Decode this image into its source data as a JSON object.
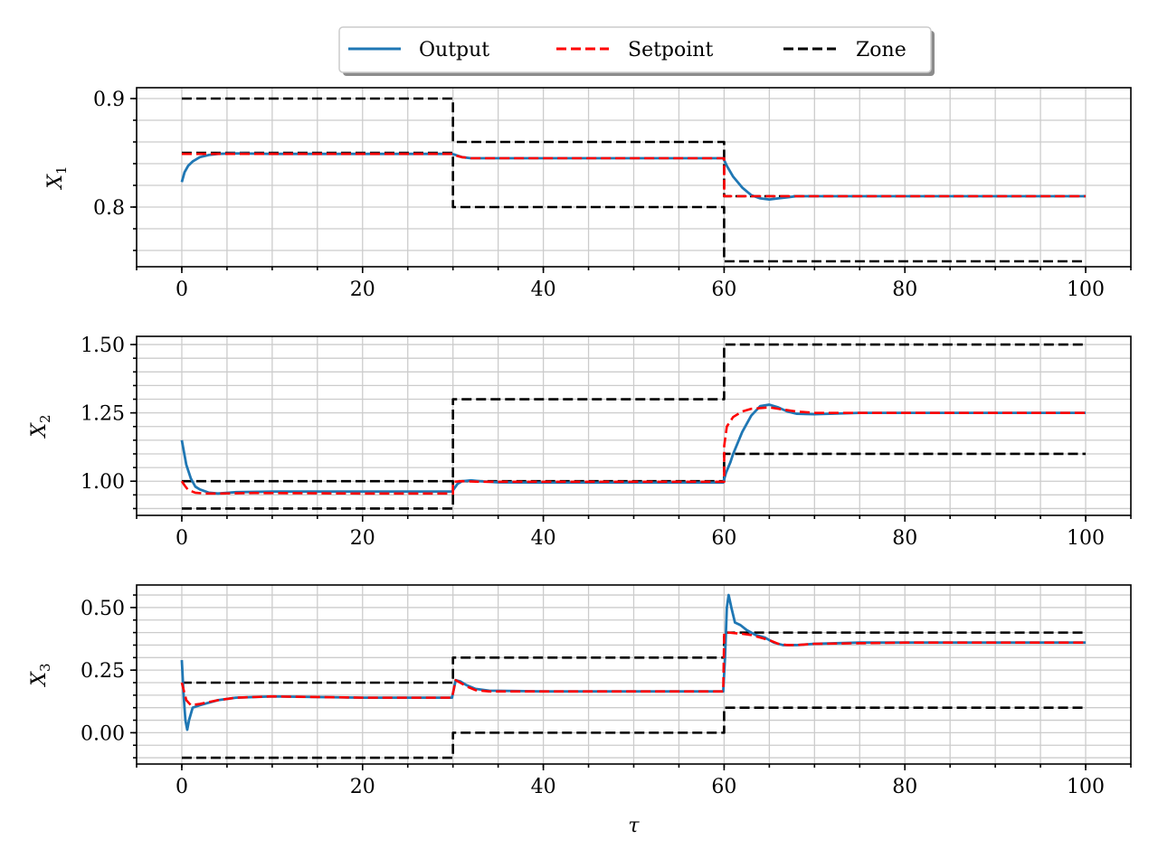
{
  "legend": {
    "items": [
      {
        "label": "Output",
        "color": "#1f77b4",
        "style": "solid"
      },
      {
        "label": "Setpoint",
        "color": "#ff0000",
        "style": "dashed"
      },
      {
        "label": "Zone",
        "color": "#000000",
        "style": "dashed"
      }
    ],
    "placement": "top-center"
  },
  "chart_data": [
    {
      "type": "line",
      "ylabel": "X",
      "ylabel_subscript": "1",
      "xlabel": "",
      "xlim": [
        -5,
        105
      ],
      "ylim": [
        0.745,
        0.91
      ],
      "xticks": [
        0,
        20,
        40,
        60,
        80,
        100
      ],
      "xtick_labels": [
        "0",
        "20",
        "40",
        "60",
        "80",
        "100"
      ],
      "yticks": [
        0.8,
        0.9
      ],
      "ytick_labels": [
        "0.8",
        "0.9"
      ],
      "grid": true,
      "series": [
        {
          "name": "Output",
          "color": "#1f77b4",
          "dash": "solid",
          "x": [
            0,
            0.3,
            0.7,
            1.2,
            2,
            3,
            4,
            6,
            10,
            20,
            29.9,
            30.3,
            31,
            32,
            34,
            40,
            50,
            59.9,
            60.3,
            61,
            62,
            63,
            64,
            65,
            66,
            67,
            68,
            70,
            75,
            80,
            90,
            100
          ],
          "y": [
            0.823,
            0.832,
            0.838,
            0.842,
            0.846,
            0.848,
            0.849,
            0.8495,
            0.849,
            0.849,
            0.849,
            0.848,
            0.846,
            0.845,
            0.845,
            0.845,
            0.845,
            0.845,
            0.838,
            0.828,
            0.818,
            0.811,
            0.808,
            0.807,
            0.808,
            0.809,
            0.81,
            0.81,
            0.81,
            0.81,
            0.81,
            0.81
          ]
        },
        {
          "name": "Setpoint",
          "color": "#ff0000",
          "dash": "dashed",
          "x": [
            0,
            10,
            20,
            30,
            30.5,
            31,
            32,
            35,
            45,
            60,
            60.01,
            65,
            80,
            100
          ],
          "y": [
            0.849,
            0.849,
            0.849,
            0.849,
            0.847,
            0.846,
            0.845,
            0.845,
            0.845,
            0.845,
            0.81,
            0.81,
            0.81,
            0.81
          ]
        },
        {
          "name": "Zone upper",
          "color": "#000000",
          "dash": "dashed",
          "x": [
            0,
            30,
            30,
            60,
            60,
            100
          ],
          "y": [
            0.9,
            0.9,
            0.86,
            0.86,
            0.81,
            0.81
          ]
        },
        {
          "name": "Zone lower",
          "color": "#000000",
          "dash": "dashed",
          "x": [
            0,
            30,
            30,
            60,
            60,
            100
          ],
          "y": [
            0.85,
            0.85,
            0.8,
            0.8,
            0.75,
            0.75
          ]
        }
      ]
    },
    {
      "type": "line",
      "ylabel": "X",
      "ylabel_subscript": "2",
      "xlabel": "",
      "xlim": [
        -5,
        105
      ],
      "ylim": [
        0.875,
        1.53
      ],
      "xticks": [
        0,
        20,
        40,
        60,
        80,
        100
      ],
      "xtick_labels": [
        "0",
        "20",
        "40",
        "60",
        "80",
        "100"
      ],
      "yticks": [
        1.0,
        1.25,
        1.5
      ],
      "ytick_labels": [
        "1.00",
        "1.25",
        "1.50"
      ],
      "grid": true,
      "series": [
        {
          "name": "Output",
          "color": "#1f77b4",
          "dash": "solid",
          "x": [
            0,
            0.5,
            1,
            1.5,
            2,
            3,
            4,
            6,
            10,
            20,
            29.9,
            30.5,
            31,
            32,
            33,
            35,
            40,
            50,
            59.9,
            60.2,
            60.7,
            61,
            62,
            63,
            64,
            65,
            66,
            67,
            68,
            70,
            75,
            80,
            90,
            100
          ],
          "y": [
            1.15,
            1.06,
            1.01,
            0.98,
            0.97,
            0.958,
            0.955,
            0.96,
            0.962,
            0.962,
            0.962,
            0.99,
            1.0,
            1.003,
            1.0,
            0.996,
            0.995,
            0.995,
            0.995,
            1.03,
            1.07,
            1.1,
            1.18,
            1.24,
            1.275,
            1.28,
            1.27,
            1.255,
            1.247,
            1.245,
            1.25,
            1.25,
            1.25,
            1.25
          ]
        },
        {
          "name": "Setpoint",
          "color": "#ff0000",
          "dash": "dashed",
          "x": [
            0,
            0.3,
            0.7,
            1.5,
            2.5,
            4,
            8,
            20,
            30,
            30.01,
            31,
            33,
            40,
            60,
            60.01,
            60.3,
            61,
            62,
            63,
            65,
            66,
            68,
            70,
            80,
            100
          ],
          "y": [
            1.0,
            0.985,
            0.968,
            0.958,
            0.955,
            0.955,
            0.957,
            0.955,
            0.955,
            0.998,
            1.0,
            0.998,
            0.998,
            0.998,
            1.13,
            1.2,
            1.235,
            1.255,
            1.265,
            1.27,
            1.265,
            1.255,
            1.25,
            1.25,
            1.25
          ]
        },
        {
          "name": "Zone upper",
          "color": "#000000",
          "dash": "dashed",
          "x": [
            0,
            30,
            30,
            60,
            60,
            100
          ],
          "y": [
            1.0,
            1.0,
            1.3,
            1.3,
            1.5,
            1.5
          ]
        },
        {
          "name": "Zone lower",
          "color": "#000000",
          "dash": "dashed",
          "x": [
            0,
            30,
            30,
            60,
            60,
            100
          ],
          "y": [
            0.9,
            0.9,
            1.0,
            1.0,
            1.1,
            1.1
          ]
        }
      ]
    },
    {
      "type": "line",
      "ylabel": "X",
      "ylabel_subscript": "3",
      "xlabel": "τ",
      "xlim": [
        -5,
        105
      ],
      "ylim": [
        -0.125,
        0.59
      ],
      "xticks": [
        0,
        20,
        40,
        60,
        80,
        100
      ],
      "xtick_labels": [
        "0",
        "20",
        "40",
        "60",
        "80",
        "100"
      ],
      "yticks": [
        0.0,
        0.25,
        0.5
      ],
      "ytick_labels": [
        "0.00",
        "0.25",
        "0.50"
      ],
      "grid": true,
      "series": [
        {
          "name": "Output",
          "color": "#1f77b4",
          "dash": "solid",
          "x": [
            0,
            0.2,
            0.4,
            0.6,
            0.8,
            1.2,
            2,
            3,
            4,
            6,
            10,
            20,
            29.9,
            30.3,
            30.8,
            31.5,
            32.5,
            34,
            40,
            50,
            59.9,
            60.1,
            60.3,
            60.5,
            60.8,
            61.2,
            61.8,
            62.5,
            63.5,
            64.5,
            65.5,
            66.5,
            68,
            70,
            75,
            80,
            90,
            100
          ],
          "y": [
            0.29,
            0.15,
            0.05,
            0.012,
            0.05,
            0.1,
            0.11,
            0.12,
            0.13,
            0.14,
            0.145,
            0.14,
            0.14,
            0.21,
            0.205,
            0.19,
            0.175,
            0.168,
            0.165,
            0.165,
            0.165,
            0.3,
            0.5,
            0.55,
            0.5,
            0.44,
            0.43,
            0.41,
            0.39,
            0.38,
            0.36,
            0.35,
            0.35,
            0.355,
            0.36,
            0.36,
            0.36,
            0.36
          ]
        },
        {
          "name": "Setpoint",
          "color": "#ff0000",
          "dash": "dashed",
          "x": [
            0,
            0.5,
            1,
            2,
            4,
            6,
            10,
            20,
            29.9,
            30.3,
            30.8,
            31.5,
            32.5,
            34,
            40,
            50,
            59.9,
            60.01,
            60.5,
            62,
            63,
            64,
            65,
            66,
            67,
            68,
            70,
            80,
            100
          ],
          "y": [
            0.2,
            0.13,
            0.11,
            0.115,
            0.13,
            0.14,
            0.145,
            0.14,
            0.14,
            0.21,
            0.2,
            0.185,
            0.17,
            0.165,
            0.165,
            0.165,
            0.165,
            0.4,
            0.4,
            0.395,
            0.39,
            0.38,
            0.37,
            0.355,
            0.35,
            0.35,
            0.355,
            0.36,
            0.36
          ]
        },
        {
          "name": "Zone upper",
          "color": "#000000",
          "dash": "dashed",
          "x": [
            0,
            30,
            30,
            60,
            60,
            100
          ],
          "y": [
            0.2,
            0.2,
            0.3,
            0.3,
            0.4,
            0.4
          ]
        },
        {
          "name": "Zone lower",
          "color": "#000000",
          "dash": "dashed",
          "x": [
            0,
            30,
            30,
            60,
            60,
            100
          ],
          "y": [
            -0.1,
            -0.1,
            0.0,
            0.0,
            0.1,
            0.1
          ]
        }
      ]
    }
  ]
}
